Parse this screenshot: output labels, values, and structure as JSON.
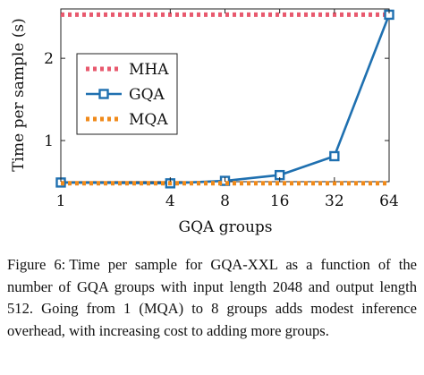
{
  "chart_data": {
    "type": "line",
    "title": "",
    "xlabel": "GQA groups",
    "ylabel": "Time per sample (s)",
    "x_scale": "log2",
    "x": [
      1,
      4,
      8,
      16,
      32,
      64
    ],
    "x_ticks": [
      "1",
      "4",
      "8",
      "16",
      "32",
      "64"
    ],
    "xlim": [
      1,
      64
    ],
    "ylim": [
      0.5,
      2.6
    ],
    "y_ticks": [
      "1",
      "2"
    ],
    "y_tick_values": [
      1,
      2
    ],
    "grid": false,
    "legend_position": "upper-left",
    "series": [
      {
        "name": "MHA",
        "values": [
          2.53,
          2.53,
          2.53,
          2.53,
          2.53,
          2.53
        ],
        "color": "#e8596e",
        "style": "dotted",
        "marker": "none"
      },
      {
        "name": "GQA",
        "values": [
          0.49,
          0.48,
          0.51,
          0.58,
          0.81,
          2.53
        ],
        "color": "#1f70b0",
        "style": "solid",
        "marker": "square"
      },
      {
        "name": "MQA",
        "values": [
          0.48,
          0.48,
          0.48,
          0.48,
          0.48,
          0.48
        ],
        "color": "#f08a1a",
        "style": "dotted",
        "marker": "none"
      }
    ]
  },
  "caption": {
    "label": "Figure 6:",
    "text": "Time per sample for GQA-XXL as a function of the number of GQA groups with input length 2048 and output length 512. Going from 1 (MQA) to 8 groups adds modest inference overhead, with increasing cost to adding more groups."
  }
}
